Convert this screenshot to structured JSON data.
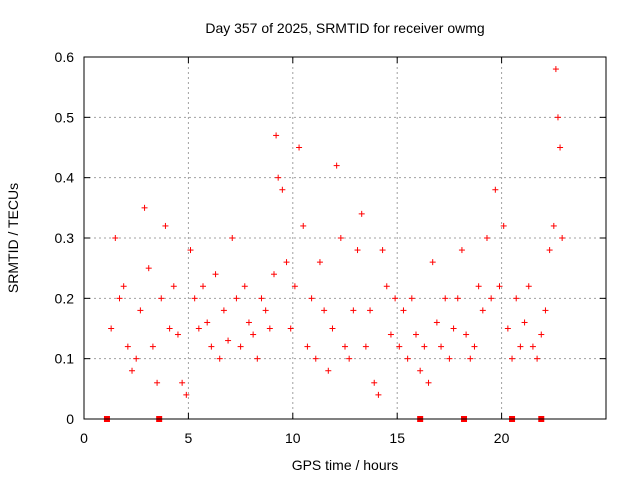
{
  "chart_data": {
    "type": "scatter",
    "title": "Day 357 of 2025, SRMTID for receiver owmg",
    "xlabel": "GPS time / hours",
    "ylabel": "SRMTID / TECUs",
    "xlim": [
      0,
      25
    ],
    "ylim": [
      0,
      0.6
    ],
    "x_ticks": [
      0,
      5,
      10,
      15,
      20
    ],
    "x_tick_labels": [
      "0",
      "5",
      "10",
      "15",
      "20"
    ],
    "y_ticks": [
      0,
      0.1,
      0.2,
      0.3,
      0.4,
      0.5,
      0.6
    ],
    "y_tick_labels": [
      "0",
      "0.1",
      "0.2",
      "0.3",
      "0.4",
      "0.5",
      "0.6"
    ],
    "grid": true,
    "marker": "plus",
    "color": "#ff0000",
    "series": [
      {
        "name": "SRMTID",
        "x": [
          1.3,
          1.5,
          1.7,
          1.9,
          2.1,
          2.3,
          2.5,
          2.7,
          2.9,
          3.1,
          3.3,
          3.5,
          3.7,
          3.9,
          4.1,
          4.3,
          4.5,
          4.7,
          4.9,
          5.1,
          5.3,
          5.5,
          5.7,
          5.9,
          6.1,
          6.3,
          6.5,
          6.7,
          6.9,
          7.1,
          7.3,
          7.5,
          7.7,
          7.9,
          8.1,
          8.3,
          8.5,
          8.7,
          8.9,
          9.1,
          9.2,
          9.3,
          9.5,
          9.7,
          9.9,
          10.1,
          10.3,
          10.5,
          10.7,
          10.9,
          11.1,
          11.3,
          11.5,
          11.7,
          11.9,
          12.1,
          12.3,
          12.5,
          12.7,
          12.9,
          13.1,
          13.3,
          13.5,
          13.7,
          13.9,
          14.1,
          14.3,
          14.5,
          14.7,
          14.9,
          15.1,
          15.3,
          15.5,
          15.7,
          15.9,
          16.1,
          16.3,
          16.5,
          16.7,
          16.9,
          17.1,
          17.3,
          17.5,
          17.7,
          17.9,
          18.1,
          18.3,
          18.5,
          18.7,
          18.9,
          19.1,
          19.3,
          19.5,
          19.7,
          19.9,
          20.1,
          20.3,
          20.5,
          20.7,
          20.9,
          21.1,
          21.3,
          21.5,
          21.7,
          21.9,
          22.1,
          22.3,
          22.5,
          22.6,
          22.7,
          22.8,
          22.9
        ],
        "y": [
          0.15,
          0.3,
          0.2,
          0.22,
          0.12,
          0.08,
          0.1,
          0.18,
          0.35,
          0.25,
          0.12,
          0.06,
          0.2,
          0.32,
          0.15,
          0.22,
          0.14,
          0.06,
          0.04,
          0.28,
          0.2,
          0.15,
          0.22,
          0.16,
          0.12,
          0.24,
          0.1,
          0.18,
          0.13,
          0.3,
          0.2,
          0.12,
          0.22,
          0.16,
          0.14,
          0.1,
          0.2,
          0.18,
          0.15,
          0.24,
          0.47,
          0.4,
          0.38,
          0.26,
          0.15,
          0.22,
          0.45,
          0.32,
          0.12,
          0.2,
          0.1,
          0.26,
          0.18,
          0.08,
          0.15,
          0.42,
          0.3,
          0.12,
          0.1,
          0.18,
          0.28,
          0.34,
          0.12,
          0.18,
          0.06,
          0.04,
          0.28,
          0.22,
          0.14,
          0.2,
          0.12,
          0.18,
          0.1,
          0.2,
          0.14,
          0.08,
          0.12,
          0.06,
          0.26,
          0.16,
          0.12,
          0.2,
          0.1,
          0.15,
          0.2,
          0.28,
          0.14,
          0.1,
          0.12,
          0.22,
          0.18,
          0.3,
          0.2,
          0.38,
          0.22,
          0.32,
          0.15,
          0.1,
          0.2,
          0.12,
          0.16,
          0.22,
          0.12,
          0.1,
          0.14,
          0.18,
          0.28,
          0.32,
          0.58,
          0.5,
          0.45,
          0.3
        ]
      }
    ],
    "data_gaps_x": [
      1.1,
      3.6,
      16.1,
      18.2,
      20.5,
      21.9
    ]
  }
}
